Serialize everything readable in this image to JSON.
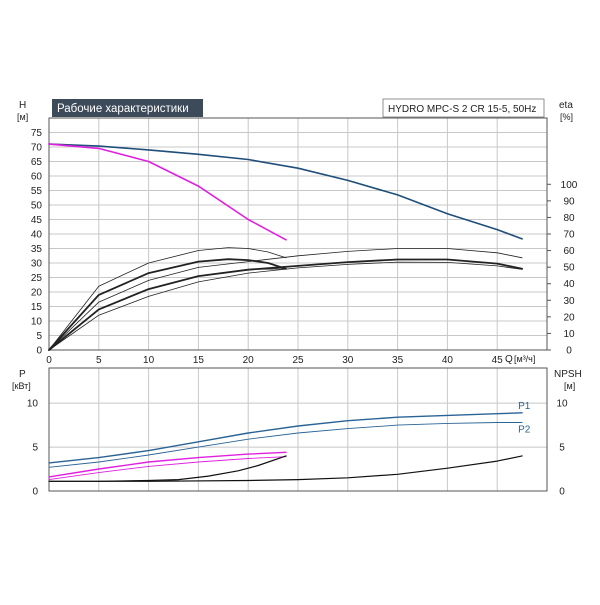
{
  "title": "Рабочие характеристики",
  "model": "HYDRO MPC-S 2 CR 15-5, 50Hz",
  "colors": {
    "pump_curve": "#1f4e79",
    "single_pump": "#e020e0",
    "efficiency": "#222222",
    "power": "#2a6496",
    "npsh": "#111111",
    "title_bg": "#3c4a5a",
    "grid": "#c8c8c8"
  },
  "chart_data": [
    {
      "type": "line",
      "panel": "head_efficiency",
      "xlabel": "Q",
      "xunit": "[м³/ч]",
      "ylabel_left": "H",
      "yunit_left": "[м]",
      "ylabel_right": "eta",
      "yunit_right": "[%]",
      "xlim": [
        0,
        50
      ],
      "ylim_left": [
        0,
        80
      ],
      "ylim_right": [
        0,
        140
      ],
      "x_ticks": [
        0,
        5,
        10,
        15,
        20,
        25,
        30,
        35,
        40,
        45
      ],
      "y_ticks_left": [
        0,
        5,
        10,
        15,
        20,
        25,
        30,
        35,
        40,
        45,
        50,
        55,
        60,
        65,
        70,
        75
      ],
      "y_ticks_right": [
        0,
        10,
        20,
        30,
        40,
        50,
        60,
        70,
        80,
        90,
        100
      ],
      "grid": true,
      "series": [
        {
          "axis": "left",
          "color_key": "pump_curve",
          "width": 1.6,
          "x": [
            0,
            5,
            10,
            15,
            20,
            25,
            30,
            35,
            40,
            45,
            47.5
          ],
          "y": [
            71,
            70.3,
            69,
            67.5,
            65.7,
            62.7,
            58.5,
            53.5,
            47,
            41.5,
            38.3
          ]
        },
        {
          "axis": "left",
          "color_key": "single_pump",
          "width": 1.6,
          "x": [
            0,
            5,
            10,
            15,
            20,
            23.8
          ],
          "y": [
            71,
            69.5,
            65,
            56.5,
            45,
            38
          ]
        },
        {
          "axis": "left",
          "color_key": "efficiency",
          "width": 1.8,
          "x": [
            0,
            5,
            10,
            15,
            18,
            20,
            22,
            23.8
          ],
          "y": [
            0,
            19,
            26.5,
            30.5,
            31.3,
            31,
            30,
            28
          ]
        },
        {
          "axis": "left",
          "color_key": "efficiency",
          "width": 0.8,
          "x": [
            0,
            5,
            10,
            15,
            18,
            20,
            22,
            23.8
          ],
          "y": [
            0,
            22,
            30,
            34.3,
            35.3,
            35,
            33.8,
            31.8
          ]
        },
        {
          "axis": "left",
          "color_key": "efficiency",
          "width": 0.8,
          "x": [
            0,
            5,
            10,
            15,
            20,
            23.8
          ],
          "y": [
            0,
            14,
            21,
            25.5,
            27.8,
            28
          ]
        },
        {
          "axis": "left",
          "color_key": "efficiency",
          "width": 1.8,
          "x": [
            0,
            5,
            10,
            15,
            20,
            25,
            30,
            35,
            40,
            45,
            47.5
          ],
          "y": [
            0,
            14,
            21,
            25.5,
            27.7,
            29,
            30.3,
            31.2,
            31.2,
            29.8,
            28
          ]
        },
        {
          "axis": "left",
          "color_key": "efficiency",
          "width": 0.8,
          "x": [
            0,
            5,
            10,
            15,
            20,
            25,
            30,
            35,
            40,
            45,
            47.5
          ],
          "y": [
            0,
            16.5,
            24,
            28.5,
            30.5,
            32.5,
            34,
            35,
            35,
            33.5,
            31.8
          ]
        },
        {
          "axis": "left",
          "color_key": "efficiency",
          "width": 0.8,
          "x": [
            0,
            5,
            10,
            15,
            20,
            25,
            30,
            35,
            40,
            45,
            47.5
          ],
          "y": [
            0,
            12,
            18.5,
            23.5,
            26.5,
            28.3,
            29.5,
            30.3,
            30.2,
            29,
            27.8
          ]
        }
      ]
    },
    {
      "type": "line",
      "panel": "power_npsh",
      "xlim": [
        0,
        50
      ],
      "ylabel_left": "P",
      "yunit_left": "[кВт]",
      "ylabel_right": "NPSH",
      "yunit_right": "[м]",
      "ylim_left": [
        0,
        14
      ],
      "ylim_right": [
        0,
        14
      ],
      "y_ticks_left": [
        0,
        5,
        10
      ],
      "y_ticks_right": [
        0,
        5,
        10
      ],
      "grid": true,
      "series": [
        {
          "name": "P1",
          "axis": "left",
          "color_key": "power",
          "width": 1.4,
          "x": [
            0,
            5,
            10,
            15,
            20,
            25,
            30,
            35,
            40,
            45,
            47.5
          ],
          "y": [
            3.2,
            3.8,
            4.6,
            5.6,
            6.6,
            7.4,
            8,
            8.4,
            8.6,
            8.8,
            8.9
          ]
        },
        {
          "name": "P2",
          "axis": "left",
          "color_key": "power",
          "width": 0.9,
          "x": [
            0,
            5,
            10,
            15,
            20,
            25,
            30,
            35,
            40,
            45,
            47.5
          ],
          "y": [
            2.7,
            3.3,
            4.1,
            5,
            5.9,
            6.6,
            7.1,
            7.5,
            7.7,
            7.8,
            7.8
          ]
        },
        {
          "axis": "left",
          "color_key": "single_pump",
          "width": 1.4,
          "x": [
            0,
            5,
            10,
            15,
            20,
            23.8
          ],
          "y": [
            1.6,
            2.5,
            3.3,
            3.8,
            4.2,
            4.4
          ]
        },
        {
          "axis": "left",
          "color_key": "single_pump",
          "width": 0.9,
          "x": [
            0,
            5,
            10,
            15,
            20,
            23.8
          ],
          "y": [
            1.3,
            2.1,
            2.8,
            3.3,
            3.7,
            3.9
          ]
        },
        {
          "axis": "left",
          "color_key": "npsh",
          "width": 1.2,
          "x": [
            0,
            5,
            10,
            13,
            16,
            19,
            21,
            23.8
          ],
          "y": [
            1.1,
            1.1,
            1.2,
            1.3,
            1.7,
            2.3,
            2.9,
            4
          ]
        },
        {
          "axis": "left",
          "color_key": "npsh",
          "width": 1.2,
          "x": [
            0,
            10,
            20,
            25,
            30,
            35,
            40,
            45,
            47.5
          ],
          "y": [
            1.1,
            1.1,
            1.2,
            1.3,
            1.5,
            1.9,
            2.6,
            3.4,
            4
          ]
        }
      ]
    }
  ]
}
